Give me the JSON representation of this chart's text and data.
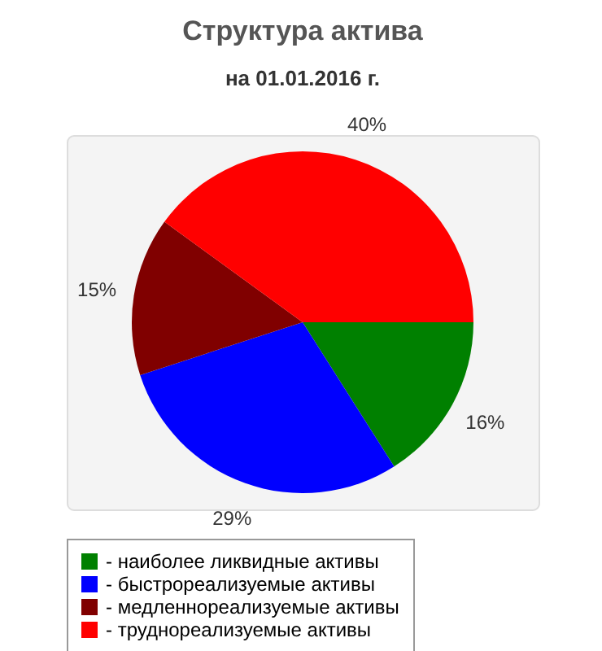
{
  "chart_data": {
    "type": "pie",
    "title": "Структура актива",
    "subtitle": "на 01.01.2016 г.",
    "categories": [
      "- наиболее ликвидные активы",
      "- быстрореализуемые активы",
      "- медленнореализуемые активы",
      "- труднореализуемые активы"
    ],
    "values": [
      16,
      29,
      15,
      40
    ],
    "value_labels": [
      "16%",
      "29%",
      "15%",
      "40%"
    ],
    "colors": [
      "#008000",
      "#0000ff",
      "#800000",
      "#ff0000"
    ],
    "legend": "bottom"
  }
}
